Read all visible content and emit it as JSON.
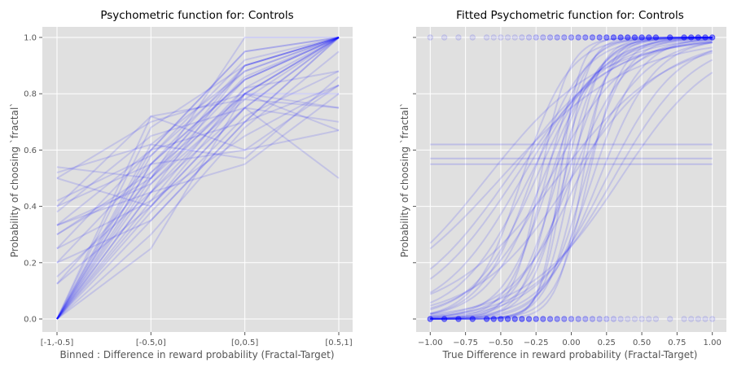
{
  "figure": {
    "background": "#ffffff",
    "axes_facecolor": "#e0e0e0",
    "grid_color": "#ffffff",
    "line_color": "#0000ff"
  },
  "chart_data": [
    {
      "type": "line",
      "title": "Psychometric function for: Controls",
      "xlabel": "Binned : Difference in reward probability (Fractal-Target)",
      "ylabel": "Probability of choosing `fractal`",
      "categories": [
        "[-1,-0.5]",
        "[-0.5,0]",
        "[0,0.5]",
        "[0.5,1]"
      ],
      "yticks": [
        "0.0",
        "0.2",
        "0.4",
        "0.6",
        "0.8",
        "1.0"
      ],
      "ylim": [
        -0.05,
        1.05
      ],
      "grid": true,
      "series": [
        {
          "values": [
            0.0,
            0.5,
            0.85,
            1.0
          ]
        },
        {
          "values": [
            0.0,
            0.45,
            0.8,
            1.0
          ]
        },
        {
          "values": [
            0.0,
            0.55,
            0.9,
            1.0
          ]
        },
        {
          "values": [
            0.0,
            0.4,
            0.75,
            1.0
          ]
        },
        {
          "values": [
            0.0,
            0.6,
            0.95,
            1.0
          ]
        },
        {
          "values": [
            0.0,
            0.35,
            0.7,
            1.0
          ]
        },
        {
          "values": [
            0.0,
            0.62,
            0.88,
            1.0
          ]
        },
        {
          "values": [
            0.0,
            0.48,
            0.78,
            1.0
          ]
        },
        {
          "values": [
            0.0,
            0.42,
            0.82,
            1.0
          ]
        },
        {
          "values": [
            0.0,
            0.58,
            0.92,
            1.0
          ]
        },
        {
          "values": [
            0.0,
            0.3,
            0.68,
            0.95
          ]
        },
        {
          "values": [
            0.0,
            0.52,
            0.86,
            1.0
          ]
        },
        {
          "values": [
            0.0,
            0.68,
            0.9,
            1.0
          ]
        },
        {
          "values": [
            0.0,
            0.38,
            0.72,
            0.88
          ]
        },
        {
          "values": [
            0.0,
            0.55,
            0.6,
            0.83
          ]
        },
        {
          "values": [
            0.0,
            0.25,
            0.8,
            0.67
          ]
        },
        {
          "values": [
            0.0,
            0.72,
            0.78,
            0.75
          ]
        },
        {
          "values": [
            0.0,
            0.45,
            0.55,
            0.8
          ]
        },
        {
          "values": [
            0.125,
            0.5,
            0.9,
            1.0
          ]
        },
        {
          "values": [
            0.125,
            0.4,
            0.8,
            1.0
          ]
        },
        {
          "values": [
            0.15,
            0.45,
            0.75,
            1.0
          ]
        },
        {
          "values": [
            0.2,
            0.55,
            0.85,
            1.0
          ]
        },
        {
          "values": [
            0.2,
            0.35,
            0.7,
            1.0
          ]
        },
        {
          "values": [
            0.25,
            0.6,
            0.95,
            1.0
          ]
        },
        {
          "values": [
            0.25,
            0.42,
            0.65,
            0.83
          ]
        },
        {
          "values": [
            0.3,
            0.5,
            1.0,
            1.0
          ]
        },
        {
          "values": [
            0.3,
            0.52,
            0.8,
            1.0
          ]
        },
        {
          "values": [
            0.333,
            0.45,
            0.9,
            1.0
          ]
        },
        {
          "values": [
            0.333,
            0.6,
            0.7,
            0.83
          ]
        },
        {
          "values": [
            0.333,
            0.48,
            0.82,
            0.88
          ]
        },
        {
          "values": [
            0.38,
            0.65,
            0.75,
            0.7
          ]
        },
        {
          "values": [
            0.4,
            0.55,
            0.85,
            1.0
          ]
        },
        {
          "values": [
            0.4,
            0.72,
            0.6,
            0.67
          ]
        },
        {
          "values": [
            0.42,
            0.58,
            0.88,
            1.0
          ]
        },
        {
          "values": [
            0.5,
            0.7,
            0.8,
            0.8
          ]
        },
        {
          "values": [
            0.5,
            0.4,
            0.75,
            0.5
          ]
        },
        {
          "values": [
            0.52,
            0.62,
            0.57,
            0.86
          ]
        },
        {
          "values": [
            0.54,
            0.5,
            0.8,
            0.75
          ]
        }
      ]
    },
    {
      "type": "line",
      "title": "Fitted Psychometric function for: Controls",
      "xlabel": "True Difference in reward probability (Fractal-Target)",
      "ylabel": "Probability of choosing `fractal`",
      "xticks": [
        "−1.00",
        "−0.75",
        "−0.50",
        "−0.25",
        "0.00",
        "0.25",
        "0.50",
        "0.75",
        "1.00"
      ],
      "xlim": [
        -1.1,
        1.1
      ],
      "ylim": [
        -0.05,
        1.05
      ],
      "grid": true,
      "curves": [
        {
          "midpoint": -0.05,
          "slope": 8
        },
        {
          "midpoint": -0.1,
          "slope": 7
        },
        {
          "midpoint": 0.0,
          "slope": 10
        },
        {
          "midpoint": -0.15,
          "slope": 6
        },
        {
          "midpoint": 0.05,
          "slope": 9
        },
        {
          "midpoint": -0.2,
          "slope": 5
        },
        {
          "midpoint": 0.1,
          "slope": 7
        },
        {
          "midpoint": -0.25,
          "slope": 4.5
        },
        {
          "midpoint": -0.05,
          "slope": 12
        },
        {
          "midpoint": -0.3,
          "slope": 4
        },
        {
          "midpoint": 0.15,
          "slope": 6
        },
        {
          "midpoint": -0.12,
          "slope": 9
        },
        {
          "midpoint": -0.35,
          "slope": 3.5
        },
        {
          "midpoint": 0.0,
          "slope": 5
        },
        {
          "midpoint": -0.08,
          "slope": 14
        },
        {
          "midpoint": 0.2,
          "slope": 5
        },
        {
          "midpoint": -0.4,
          "slope": 3
        },
        {
          "midpoint": -0.18,
          "slope": 7.5
        },
        {
          "midpoint": 0.08,
          "slope": 11
        },
        {
          "midpoint": -0.03,
          "slope": 6.5
        },
        {
          "midpoint": -0.28,
          "slope": 5.5
        },
        {
          "midpoint": 0.25,
          "slope": 4
        },
        {
          "midpoint": -0.45,
          "slope": 2.8
        },
        {
          "midpoint": 0.12,
          "slope": 8.5
        },
        {
          "midpoint": -0.22,
          "slope": 10
        },
        {
          "midpoint": -0.6,
          "slope": 2.5
        },
        {
          "midpoint": 0.0,
          "slope": 3
        },
        {
          "midpoint": -0.5,
          "slope": 2.2
        },
        {
          "midpoint": 0.3,
          "slope": 3.5
        },
        {
          "midpoint": -0.15,
          "slope": 3.8
        },
        {
          "midpoint": 0.35,
          "slope": 3
        },
        {
          "midpoint": -0.35,
          "slope": 6
        },
        {
          "midpoint": 0.05,
          "slope": 4.2
        },
        {
          "midpoint": -0.1,
          "slope": 2.6
        }
      ],
      "flat_lines": [
        0.62,
        0.57,
        0.55
      ],
      "points_x": [
        -1.0,
        -0.9,
        -0.8,
        -0.7,
        -0.6,
        -0.55,
        -0.5,
        -0.45,
        -0.4,
        -0.35,
        -0.3,
        -0.25,
        -0.2,
        -0.15,
        -0.1,
        -0.05,
        0.0,
        0.05,
        0.1,
        0.15,
        0.2,
        0.25,
        0.3,
        0.35,
        0.4,
        0.45,
        0.5,
        0.55,
        0.6,
        0.7,
        0.8,
        0.85,
        0.9,
        0.95,
        1.0
      ]
    }
  ]
}
